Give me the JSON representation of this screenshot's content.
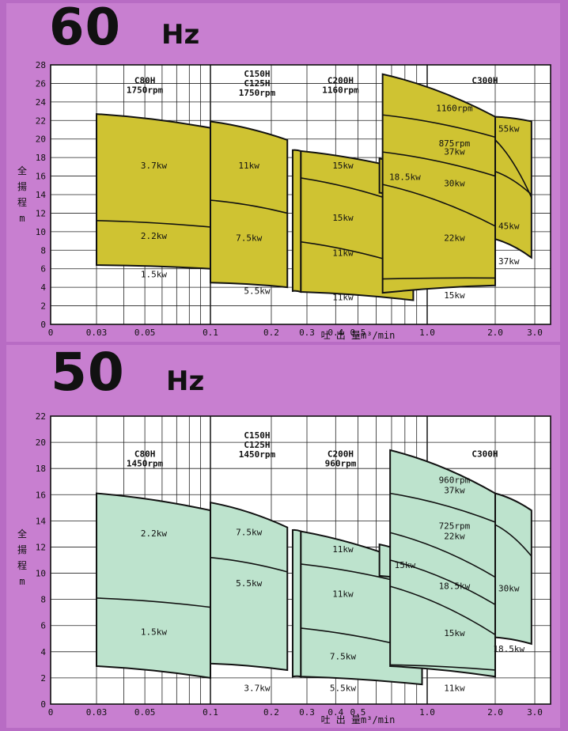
{
  "charts": [
    {
      "id": "60",
      "hz_num": "60",
      "hz_unit": "Hz",
      "fill": "#cfc332",
      "xaxis_label": "吐 出 量m³/min",
      "yaxis_label": [
        "全",
        "揚",
        "程",
        "m"
      ],
      "x_ticks": [
        {
          "v": 0.03,
          "t": "0.03"
        },
        {
          "v": 0.05,
          "t": "0.05"
        },
        {
          "v": 0.1,
          "t": "0.1"
        },
        {
          "v": 0.2,
          "t": "0.2"
        },
        {
          "v": 0.3,
          "t": "0.3"
        },
        {
          "v": 0.4,
          "t": "0.4"
        },
        {
          "v": 0.5,
          "t": "0.5"
        },
        {
          "v": 1.0,
          "t": "1.0"
        },
        {
          "v": 2.0,
          "t": "2.0"
        },
        {
          "v": 3.0,
          "t": "3.0"
        }
      ],
      "x_origin_label": "0",
      "y_ticks": [
        "0",
        "2",
        "4",
        "6",
        "8",
        "10",
        "12",
        "14",
        "16",
        "18",
        "20",
        "22",
        "24",
        "26",
        "28"
      ],
      "model_labels": [
        {
          "lines": [
            "C80H",
            "1750rpm"
          ],
          "x": 0.05,
          "y": 26.0
        },
        {
          "lines": [
            "C150H",
            "C125H",
            "1750rpm"
          ],
          "x": 0.17,
          "y": 26.7
        },
        {
          "lines": [
            "C200H",
            "1160rpm"
          ],
          "x": 0.42,
          "y": 26.0
        },
        {
          "lines": [
            "C300H"
          ],
          "x": 1.8,
          "y": 26.0
        }
      ],
      "power_labels": [
        {
          "t": "3.7kw",
          "x": 0.055,
          "y": 16.8
        },
        {
          "t": "2.2kw",
          "x": 0.055,
          "y": 9.2
        },
        {
          "t": "1.5kw",
          "x": 0.055,
          "y": 5.1
        },
        {
          "t": "11kw",
          "x": 0.155,
          "y": 16.8
        },
        {
          "t": "7.5kw",
          "x": 0.155,
          "y": 9.0
        },
        {
          "t": "5.5kw",
          "x": 0.17,
          "y": 3.3
        },
        {
          "t": "15kw",
          "x": 0.43,
          "y": 16.8
        },
        {
          "t": "15kw",
          "x": 0.43,
          "y": 11.2
        },
        {
          "t": "11kw",
          "x": 0.43,
          "y": 7.4
        },
        {
          "t": "11kw",
          "x": 0.43,
          "y": 2.6
        },
        {
          "t": "18.5kw",
          "x": 0.8,
          "y": 15.6
        },
        {
          "t": "1160rpm",
          "x": 1.32,
          "y": 23.0
        },
        {
          "t": "55kw",
          "x": 2.3,
          "y": 20.8
        },
        {
          "t": "875rpm",
          "x": 1.32,
          "y": 19.2
        },
        {
          "t": "37kw",
          "x": 1.32,
          "y": 18.3
        },
        {
          "t": "30kw",
          "x": 1.32,
          "y": 14.9
        },
        {
          "t": "22kw",
          "x": 1.32,
          "y": 9.0
        },
        {
          "t": "45kw",
          "x": 2.3,
          "y": 10.3
        },
        {
          "t": "37kw",
          "x": 2.3,
          "y": 6.5
        },
        {
          "t": "15kw",
          "x": 1.32,
          "y": 2.8
        }
      ],
      "regions": [
        {
          "xl": 0.03,
          "xr": 0.1,
          "top": [
            22.7,
            21.2
          ],
          "bottom": [
            6.4,
            6.0
          ],
          "dividers": [
            [
              11.2,
              10.5
            ]
          ]
        },
        {
          "xl": 0.1,
          "xr": 0.24,
          "top": [
            21.9,
            19.9
          ],
          "bottom": [
            4.5,
            4.0
          ],
          "dividers": [
            [
              13.4,
              12.0
            ]
          ]
        },
        {
          "xl": 0.255,
          "xr": 0.28,
          "top": [
            18.8,
            18.7
          ],
          "bottom": [
            3.6,
            3.5
          ],
          "dividers": []
        },
        {
          "xl": 0.28,
          "xr": 0.87,
          "top": [
            18.7,
            16.5
          ],
          "bottom": [
            3.5,
            2.6
          ],
          "dividers": [
            [
              15.8,
              12.6
            ],
            [
              8.9,
              6.1
            ]
          ]
        },
        {
          "xl": 0.62,
          "xr": 0.87,
          "top": [
            17.9,
            16.5
          ],
          "bottom": [
            14.2,
            13.5
          ],
          "dividers": []
        },
        {
          "xl": 0.64,
          "xr": 2.0,
          "top": [
            27.0,
            22.4
          ],
          "bottom": [
            3.4,
            4.2
          ],
          "dividers": [
            [
              22.6,
              20.2
            ],
            [
              18.6,
              16.0
            ],
            [
              15.1,
              10.6
            ],
            [
              4.9,
              5.0
            ]
          ]
        },
        {
          "xl": 2.0,
          "xr": 2.9,
          "top": [
            22.4,
            21.9
          ],
          "bottom": [
            9.2,
            7.2
          ],
          "dividers": [
            [
              19.9,
              13.7
            ],
            [
              16.5,
              14.0
            ]
          ]
        }
      ]
    },
    {
      "id": "50",
      "hz_num": "50",
      "hz_unit": "Hz",
      "fill": "#bde3cd",
      "xaxis_label": "吐 出 量m³/min",
      "yaxis_label": [
        "全",
        "揚",
        "程",
        "m"
      ],
      "x_ticks": [
        {
          "v": 0.03,
          "t": "0.03"
        },
        {
          "v": 0.05,
          "t": "0.05"
        },
        {
          "v": 0.1,
          "t": "0.1"
        },
        {
          "v": 0.2,
          "t": "0.2"
        },
        {
          "v": 0.3,
          "t": "0.3"
        },
        {
          "v": 0.4,
          "t": "0.4"
        },
        {
          "v": 0.5,
          "t": "0.5"
        },
        {
          "v": 1.0,
          "t": "1.0"
        },
        {
          "v": 2.0,
          "t": "2.0"
        },
        {
          "v": 3.0,
          "t": "3.0"
        }
      ],
      "x_origin_label": "0",
      "y_ticks": [
        "0",
        "2",
        "4",
        "6",
        "8",
        "10",
        "12",
        "14",
        "16",
        "18",
        "20",
        "22"
      ],
      "model_labels": [
        {
          "lines": [
            "C80H",
            "1450rpm"
          ],
          "x": 0.05,
          "y": 18.9
        },
        {
          "lines": [
            "C150H",
            "C125H",
            "1450rpm"
          ],
          "x": 0.17,
          "y": 20.3
        },
        {
          "lines": [
            "C200H",
            "960rpm"
          ],
          "x": 0.42,
          "y": 18.9
        },
        {
          "lines": [
            "C300H"
          ],
          "x": 1.8,
          "y": 18.9
        }
      ],
      "power_labels": [
        {
          "t": "2.2kw",
          "x": 0.055,
          "y": 12.8
        },
        {
          "t": "1.5kw",
          "x": 0.055,
          "y": 5.3
        },
        {
          "t": "7.5kw",
          "x": 0.155,
          "y": 12.9
        },
        {
          "t": "5.5kw",
          "x": 0.155,
          "y": 9.0
        },
        {
          "t": "3.7kw",
          "x": 0.17,
          "y": 1.0
        },
        {
          "t": "11kw",
          "x": 0.43,
          "y": 11.6
        },
        {
          "t": "11kw",
          "x": 0.43,
          "y": 8.2
        },
        {
          "t": "7.5kw",
          "x": 0.43,
          "y": 3.4
        },
        {
          "t": "5.5kw",
          "x": 0.43,
          "y": 1.0
        },
        {
          "t": "15kw",
          "x": 0.8,
          "y": 10.4
        },
        {
          "t": "960rpm",
          "x": 1.32,
          "y": 16.9
        },
        {
          "t": "37kw",
          "x": 1.32,
          "y": 16.1
        },
        {
          "t": "725rpm",
          "x": 1.32,
          "y": 13.4
        },
        {
          "t": "22kw",
          "x": 1.32,
          "y": 12.6
        },
        {
          "t": "18.5kw",
          "x": 1.32,
          "y": 8.8
        },
        {
          "t": "30kw",
          "x": 2.3,
          "y": 8.6
        },
        {
          "t": "15kw",
          "x": 1.32,
          "y": 5.2
        },
        {
          "t": "18.5kw",
          "x": 2.3,
          "y": 4.0
        },
        {
          "t": "11kw",
          "x": 1.32,
          "y": 1.0
        }
      ],
      "regions": [
        {
          "xl": 0.03,
          "xr": 0.1,
          "top": [
            16.1,
            14.8
          ],
          "bottom": [
            2.9,
            2.0
          ],
          "dividers": [
            [
              8.1,
              7.4
            ]
          ]
        },
        {
          "xl": 0.1,
          "xr": 0.24,
          "top": [
            15.4,
            13.5
          ],
          "bottom": [
            3.1,
            2.6
          ],
          "dividers": [
            [
              11.2,
              10.1
            ]
          ]
        },
        {
          "xl": 0.255,
          "xr": 0.28,
          "top": [
            13.3,
            13.2
          ],
          "bottom": [
            2.1,
            2.1
          ],
          "dividers": []
        },
        {
          "xl": 0.28,
          "xr": 0.95,
          "top": [
            13.2,
            10.4
          ],
          "bottom": [
            2.1,
            1.5
          ],
          "dividers": [
            [
              10.7,
              8.9
            ],
            [
              5.8,
              4.1
            ]
          ]
        },
        {
          "xl": 0.62,
          "xr": 0.95,
          "top": [
            12.2,
            11.0
          ],
          "bottom": [
            9.8,
            9.3
          ],
          "dividers": []
        },
        {
          "xl": 0.69,
          "xr": 2.0,
          "top": [
            19.4,
            16.1
          ],
          "bottom": [
            2.9,
            2.1
          ],
          "dividers": [
            [
              16.1,
              13.9
            ],
            [
              13.1,
              9.7
            ],
            [
              11.0,
              7.6
            ],
            [
              9.0,
              5.3
            ],
            [
              3.0,
              2.6
            ]
          ]
        },
        {
          "xl": 2.0,
          "xr": 2.9,
          "top": [
            16.1,
            14.8
          ],
          "bottom": [
            5.1,
            4.6
          ],
          "dividers": [
            [
              13.7,
              11.3
            ]
          ]
        }
      ]
    }
  ]
}
